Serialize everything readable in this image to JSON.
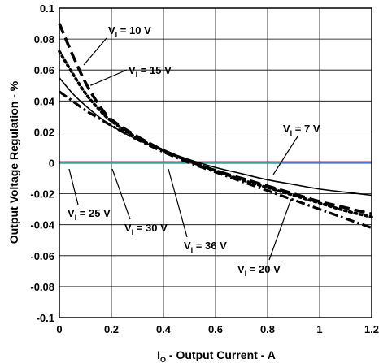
{
  "chart_data": {
    "type": "line",
    "title": "",
    "xlabel": "I_O - Output Current - A",
    "xlabel_main": "I",
    "xlabel_sub": "O",
    "xlabel_rest": " - Output Current - A",
    "ylabel": "Output Voltage Regulation - %",
    "xlim": [
      0,
      1.2
    ],
    "ylim": [
      -0.1,
      0.1
    ],
    "x_ticks": [
      "0",
      "0.2",
      "0.4",
      "0.6",
      "0.8",
      "1",
      "1.2"
    ],
    "y_ticks": [
      "0.1",
      "0.08",
      "0.06",
      "0.04",
      "0.02",
      "0",
      "-0.02",
      "-0.04",
      "-0.06",
      "-0.08",
      "-0.1"
    ],
    "grid": true,
    "series": [
      {
        "name": "V_I = 10 V",
        "style": "dash-thick",
        "color": "#000000",
        "x": [
          0,
          0.05,
          0.1,
          0.15,
          0.2,
          0.3,
          0.4,
          0.5,
          0.6,
          0.7,
          0.8,
          0.9,
          1.0,
          1.1,
          1.2
        ],
        "y": [
          0.09,
          0.07,
          0.052,
          0.038,
          0.028,
          0.017,
          0.008,
          0.001,
          -0.005,
          -0.01,
          -0.015,
          -0.02,
          -0.025,
          -0.029,
          -0.033
        ]
      },
      {
        "name": "V_I = 15 V",
        "style": "dot-thick",
        "color": "#000000",
        "x": [
          0,
          0.05,
          0.1,
          0.15,
          0.2,
          0.3,
          0.4,
          0.5,
          0.6,
          0.7,
          0.8,
          0.9,
          1.0,
          1.1,
          1.2
        ],
        "y": [
          0.072,
          0.058,
          0.045,
          0.035,
          0.027,
          0.016,
          0.008,
          0.001,
          -0.005,
          -0.011,
          -0.016,
          -0.021,
          -0.026,
          -0.031,
          -0.035
        ]
      },
      {
        "name": "V_I = 7 V",
        "style": "solid",
        "color": "#000000",
        "x": [
          0,
          0.05,
          0.1,
          0.15,
          0.2,
          0.3,
          0.4,
          0.5,
          0.6,
          0.7,
          0.8,
          0.9,
          1.0,
          1.1,
          1.2
        ],
        "y": [
          0.055,
          0.045,
          0.037,
          0.03,
          0.024,
          0.015,
          0.008,
          0.002,
          -0.003,
          -0.007,
          -0.011,
          -0.014,
          -0.017,
          -0.019,
          -0.021
        ]
      },
      {
        "name": "V_I = 20 V",
        "style": "dashdot-thick",
        "color": "#000000",
        "x": [
          0,
          0.05,
          0.1,
          0.15,
          0.2,
          0.3,
          0.4,
          0.5,
          0.6,
          0.7,
          0.8,
          0.9,
          1.0,
          1.1,
          1.2
        ],
        "y": [
          0.046,
          0.04,
          0.034,
          0.029,
          0.024,
          0.015,
          0.007,
          0.0,
          -0.006,
          -0.012,
          -0.018,
          -0.024,
          -0.03,
          -0.036,
          -0.042
        ]
      },
      {
        "name": "V_I = 25 V",
        "style": "solid-flat",
        "color": "#c0304a",
        "x": [
          0,
          1.2
        ],
        "y": [
          0.0005,
          0.0005
        ]
      },
      {
        "name": "V_I = 30 V",
        "style": "solid-flat",
        "color": "#3a7ad0",
        "x": [
          0,
          1.2
        ],
        "y": [
          0.0,
          0.0
        ]
      },
      {
        "name": "V_I = 36 V",
        "style": "solid-flat",
        "color": "#2aa89a",
        "x": [
          0,
          0.85
        ],
        "y": [
          0.0,
          0.0
        ]
      }
    ],
    "annotations": [
      {
        "id": "v10",
        "prefix": "V",
        "sub": "I",
        "suffix": " = 10 V"
      },
      {
        "id": "v15",
        "prefix": "V",
        "sub": "I",
        "suffix": " = 15 V"
      },
      {
        "id": "v7",
        "prefix": "V",
        "sub": "I",
        "suffix": " = 7 V"
      },
      {
        "id": "v25",
        "prefix": "V",
        "sub": "I",
        "suffix": " = 25 V"
      },
      {
        "id": "v30",
        "prefix": "V",
        "sub": "I",
        "suffix": " = 30 V"
      },
      {
        "id": "v36",
        "prefix": "V",
        "sub": "I",
        "suffix": " = 36 V"
      },
      {
        "id": "v20",
        "prefix": "V",
        "sub": "I",
        "suffix": " = 20 V"
      }
    ]
  }
}
